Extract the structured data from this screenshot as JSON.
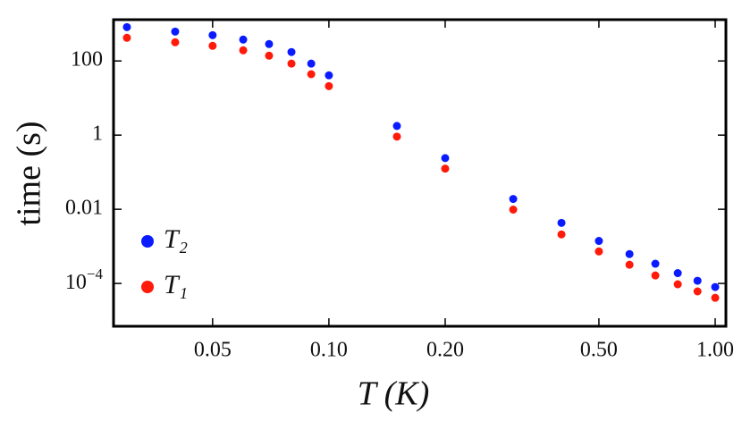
{
  "chart_data": {
    "type": "scatter",
    "xlabel": "T (K)",
    "ylabel": "time (s)",
    "xscale": "log",
    "yscale": "log",
    "xlim": [
      0.0277,
      1.066
    ],
    "ylim": [
      7e-06,
      1300
    ],
    "xticks": [
      0.05,
      {
        "value": 0.1,
        "label": "0.10"
      },
      {
        "value": 0.2,
        "label": "0.20"
      },
      {
        "value": 0.5,
        "label": "0.50"
      },
      {
        "value": 1,
        "label": "1.00"
      }
    ],
    "yticks": [
      {
        "value": 0.0001,
        "label": "10",
        "exponent": "−4"
      },
      0.01,
      1,
      100
    ],
    "legend": "lower left",
    "x": [
      0.03,
      0.04,
      0.05,
      0.06,
      0.07,
      0.08,
      0.09,
      0.1,
      0.15,
      0.2,
      0.3,
      0.4,
      0.5,
      0.6,
      0.7,
      0.8,
      0.9,
      1.0
    ],
    "series": [
      {
        "name": "T₂",
        "color": "#0a1cff",
        "values": [
          817,
          619,
          497,
          377,
          286,
          174,
          85,
          41,
          1.77,
          0.24,
          0.019,
          0.0043,
          0.0014,
          0.00062,
          0.00034,
          0.00019,
          0.000118,
          8e-05
        ]
      },
      {
        "name": "T₁",
        "color": "#ff1a0a",
        "values": [
          421,
          319,
          256,
          194,
          139,
          85,
          44,
          21,
          0.91,
          0.125,
          0.0098,
          0.0021,
          0.00073,
          0.00032,
          0.000164,
          9.5e-05,
          6.1e-05,
          4.1e-05
        ]
      }
    ]
  }
}
